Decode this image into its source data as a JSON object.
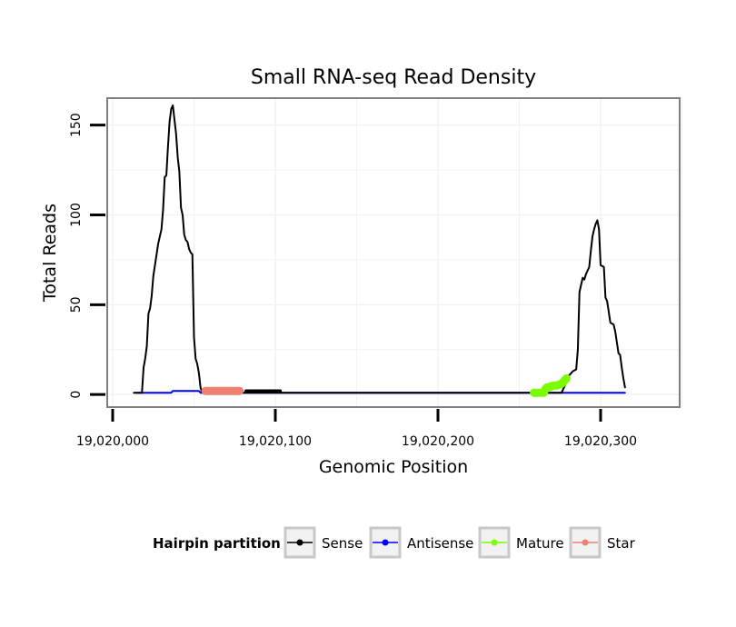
{
  "chart_data": {
    "type": "line",
    "title": "Small RNA-seq Read Density",
    "xlabel": "Genomic Position",
    "ylabel": "Total Reads",
    "xlim": [
      19020000,
      19020350
    ],
    "ylim": [
      -7,
      165
    ],
    "x_ticks": [
      19020000,
      19020100,
      19020200,
      19020300
    ],
    "x_tick_labels": [
      "19,020,000",
      "19,020,100",
      "19,020,200",
      "19,020,300"
    ],
    "y_ticks": [
      0,
      50,
      100,
      150
    ],
    "y_tick_labels": [
      "0",
      "50",
      "100",
      "150"
    ],
    "grid": true,
    "legend": {
      "title": "Hairpin partition",
      "position": "bottom",
      "entries": [
        "Sense",
        "Antisense",
        "Mature",
        "Star"
      ]
    },
    "series": [
      {
        "name": "Sense",
        "color": "#000000",
        "style": "line",
        "points": [
          [
            19020013,
            1
          ],
          [
            19020018,
            1
          ],
          [
            19020019,
            15
          ],
          [
            19020020,
            20
          ],
          [
            19020021,
            27
          ],
          [
            19020022,
            45
          ],
          [
            19020023,
            48
          ],
          [
            19020024,
            55
          ],
          [
            19020025,
            66
          ],
          [
            19020026,
            72
          ],
          [
            19020027,
            78
          ],
          [
            19020028,
            84
          ],
          [
            19020029,
            88
          ],
          [
            19020030,
            92
          ],
          [
            19020031,
            103
          ],
          [
            19020032,
            121
          ],
          [
            19020033,
            122
          ],
          [
            19020034,
            138
          ],
          [
            19020035,
            152
          ],
          [
            19020036,
            159
          ],
          [
            19020037,
            161
          ],
          [
            19020038,
            153
          ],
          [
            19020039,
            145
          ],
          [
            19020040,
            132
          ],
          [
            19020041,
            124
          ],
          [
            19020042,
            104
          ],
          [
            19020043,
            100
          ],
          [
            19020044,
            89
          ],
          [
            19020045,
            86
          ],
          [
            19020046,
            85
          ],
          [
            19020047,
            81
          ],
          [
            19020048,
            79
          ],
          [
            19020049,
            78
          ],
          [
            19020050,
            32
          ],
          [
            19020051,
            20
          ],
          [
            19020052,
            17
          ],
          [
            19020053,
            12
          ],
          [
            19020054,
            4
          ],
          [
            19020055,
            1
          ],
          [
            19020180,
            1
          ],
          [
            19020250,
            1
          ],
          [
            19020276,
            1
          ],
          [
            19020278,
            5
          ],
          [
            19020280,
            10
          ],
          [
            19020283,
            13
          ],
          [
            19020285,
            14
          ],
          [
            19020286,
            25
          ],
          [
            19020287,
            57
          ],
          [
            19020288,
            61
          ],
          [
            19020289,
            65
          ],
          [
            19020290,
            64
          ],
          [
            19020291,
            67
          ],
          [
            19020292,
            69
          ],
          [
            19020293,
            71
          ],
          [
            19020294,
            80
          ],
          [
            19020295,
            88
          ],
          [
            19020296,
            92
          ],
          [
            19020297,
            95
          ],
          [
            19020298,
            97
          ],
          [
            19020299,
            92
          ],
          [
            19020300,
            72
          ],
          [
            19020302,
            71
          ],
          [
            19020303,
            54
          ],
          [
            19020304,
            52
          ],
          [
            19020305,
            46
          ],
          [
            19020306,
            40
          ],
          [
            19020308,
            39
          ],
          [
            19020309,
            35
          ],
          [
            19020311,
            23
          ],
          [
            19020312,
            22
          ],
          [
            19020313,
            15
          ],
          [
            19020314,
            9
          ],
          [
            19020315,
            4
          ]
        ]
      },
      {
        "name": "Antisense",
        "color": "#0000ff",
        "style": "line",
        "points": [
          [
            19020014,
            1
          ],
          [
            19020036,
            1
          ],
          [
            19020037,
            2
          ],
          [
            19020053,
            2
          ],
          [
            19020054,
            1
          ],
          [
            19020057,
            1
          ],
          [
            19020058,
            2
          ],
          [
            19020063,
            2
          ],
          [
            19020064,
            1
          ],
          [
            19020315,
            1
          ]
        ]
      },
      {
        "name": "Mature",
        "color": "#7cfc00",
        "style": "thick",
        "points": [
          [
            19020259,
            1
          ],
          [
            19020261,
            1
          ],
          [
            19020265,
            1
          ],
          [
            19020266,
            3
          ],
          [
            19020267,
            4
          ],
          [
            19020268,
            4
          ],
          [
            19020271,
            5
          ],
          [
            19020273,
            5
          ],
          [
            19020276,
            6
          ],
          [
            19020278,
            8
          ],
          [
            19020279,
            9
          ]
        ]
      },
      {
        "name": "Star",
        "color": "#f08070",
        "style": "thick",
        "points": [
          [
            19020057,
            2
          ],
          [
            19020078,
            2
          ]
        ]
      },
      {
        "name": "Sense",
        "color": "#000000",
        "style": "medium",
        "points": [
          [
            19020082,
            2
          ],
          [
            19020103,
            2
          ]
        ]
      }
    ]
  }
}
